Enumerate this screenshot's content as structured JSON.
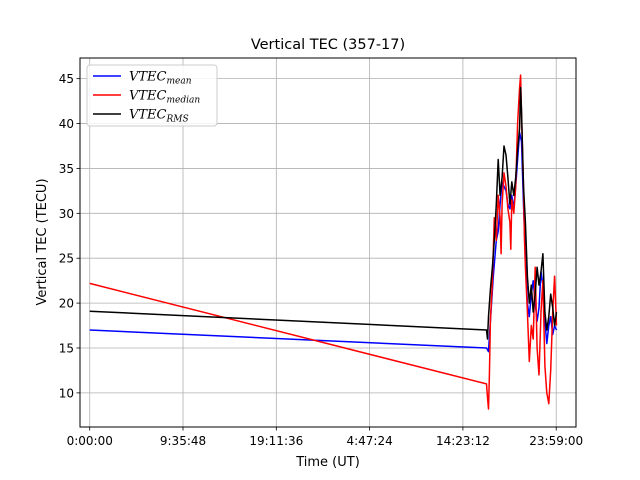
{
  "chart_data": {
    "type": "line",
    "title": "Vertical TEC (357-17)",
    "xlabel": "Time (UT)",
    "ylabel": "Vertical TEC (TECU)",
    "xlim": [
      -0.5,
      25
    ],
    "ylim": [
      6.2,
      47.3
    ],
    "x_ticks": [
      {
        "value": 0,
        "label": "0:00:00"
      },
      {
        "value": 4.796,
        "label": "9:35:48"
      },
      {
        "value": 9.593,
        "label": "19:11:36"
      },
      {
        "value": 14.39,
        "label": "4:47:24"
      },
      {
        "value": 19.186,
        "label": "14:23:12"
      },
      {
        "value": 23.983,
        "label": "23:59:00"
      }
    ],
    "y_ticks": [
      10,
      15,
      20,
      25,
      30,
      35,
      40,
      45
    ],
    "grid": true,
    "legend_position": "top-left",
    "series": [
      {
        "name": "VTEC_mean",
        "name_base": "VTEC",
        "name_sub": "mean",
        "color": "#0000ff",
        "x": [
          0,
          20.4,
          20.5,
          20.6,
          20.75,
          20.9,
          21.0,
          21.1,
          21.2,
          21.3,
          21.4,
          21.5,
          21.6,
          21.7,
          21.8,
          21.9,
          22.0,
          22.1,
          22.2,
          22.3,
          22.4,
          22.5,
          22.6,
          22.7,
          22.8,
          22.9,
          23.0,
          23.1,
          23.2,
          23.3,
          23.4,
          23.5,
          23.6,
          23.7,
          23.8,
          23.9,
          24.0
        ],
        "y": [
          17.0,
          15.0,
          14.6,
          18.0,
          23.0,
          27.0,
          28.0,
          31.0,
          33.5,
          33.0,
          32.5,
          31.0,
          30.5,
          32.0,
          30.5,
          33.0,
          36.0,
          39.0,
          38.0,
          31.0,
          25.0,
          20.0,
          18.5,
          21.0,
          22.5,
          20.0,
          18.0,
          19.5,
          23.5,
          22.0,
          18.0,
          15.5,
          17.5,
          18.5,
          16.5,
          17.5,
          17.0
        ]
      },
      {
        "name": "VTEC_median",
        "name_base": "VTEC",
        "name_sub": "median",
        "color": "#ff0000",
        "x": [
          0,
          20.4,
          20.45,
          20.5,
          20.55,
          20.6,
          20.7,
          20.8,
          20.9,
          21.0,
          21.1,
          21.15,
          21.2,
          21.3,
          21.4,
          21.5,
          21.6,
          21.65,
          21.7,
          21.8,
          21.9,
          22.0,
          22.05,
          22.1,
          22.15,
          22.2,
          22.3,
          22.35,
          22.4,
          22.5,
          22.6,
          22.7,
          22.8,
          22.9,
          23.0,
          23.1,
          23.2,
          23.3,
          23.4,
          23.5,
          23.6,
          23.7,
          23.8,
          23.9,
          24.0
        ],
        "y": [
          22.2,
          11.0,
          9.5,
          8.2,
          12.0,
          18.0,
          22.5,
          29.5,
          27.0,
          32.0,
          29.5,
          25.5,
          31.0,
          34.5,
          33.0,
          30.5,
          29.0,
          26.0,
          31.5,
          30.0,
          33.0,
          40.0,
          42.0,
          44.0,
          45.4,
          41.0,
          33.0,
          27.0,
          24.0,
          19.0,
          13.5,
          17.5,
          16.0,
          24.0,
          15.0,
          12.0,
          19.0,
          22.5,
          13.0,
          10.0,
          8.8,
          12.5,
          19.0,
          23.0,
          17.5
        ]
      },
      {
        "name": "VTEC_RMS",
        "name_base": "VTEC",
        "name_sub": "RMS",
        "color": "#000000",
        "x": [
          0,
          20.4,
          20.45,
          20.5,
          20.6,
          20.7,
          20.8,
          20.9,
          21.0,
          21.1,
          21.2,
          21.3,
          21.4,
          21.5,
          21.6,
          21.7,
          21.8,
          21.9,
          22.0,
          22.1,
          22.15,
          22.2,
          22.3,
          22.4,
          22.5,
          22.6,
          22.7,
          22.8,
          22.9,
          23.0,
          23.1,
          23.2,
          23.3,
          23.4,
          23.5,
          23.6,
          23.7,
          23.8,
          23.9,
          24.0
        ],
        "y": [
          19.1,
          17.0,
          16.0,
          18.5,
          21.5,
          24.0,
          27.0,
          31.0,
          36.0,
          32.0,
          34.0,
          37.5,
          36.5,
          34.0,
          31.0,
          33.5,
          32.0,
          34.0,
          37.0,
          39.5,
          44.0,
          41.5,
          33.0,
          29.0,
          23.0,
          20.0,
          22.0,
          19.0,
          21.0,
          24.0,
          22.0,
          23.5,
          25.5,
          19.0,
          17.0,
          18.5,
          21.0,
          19.5,
          17.5,
          19.0
        ]
      }
    ]
  }
}
